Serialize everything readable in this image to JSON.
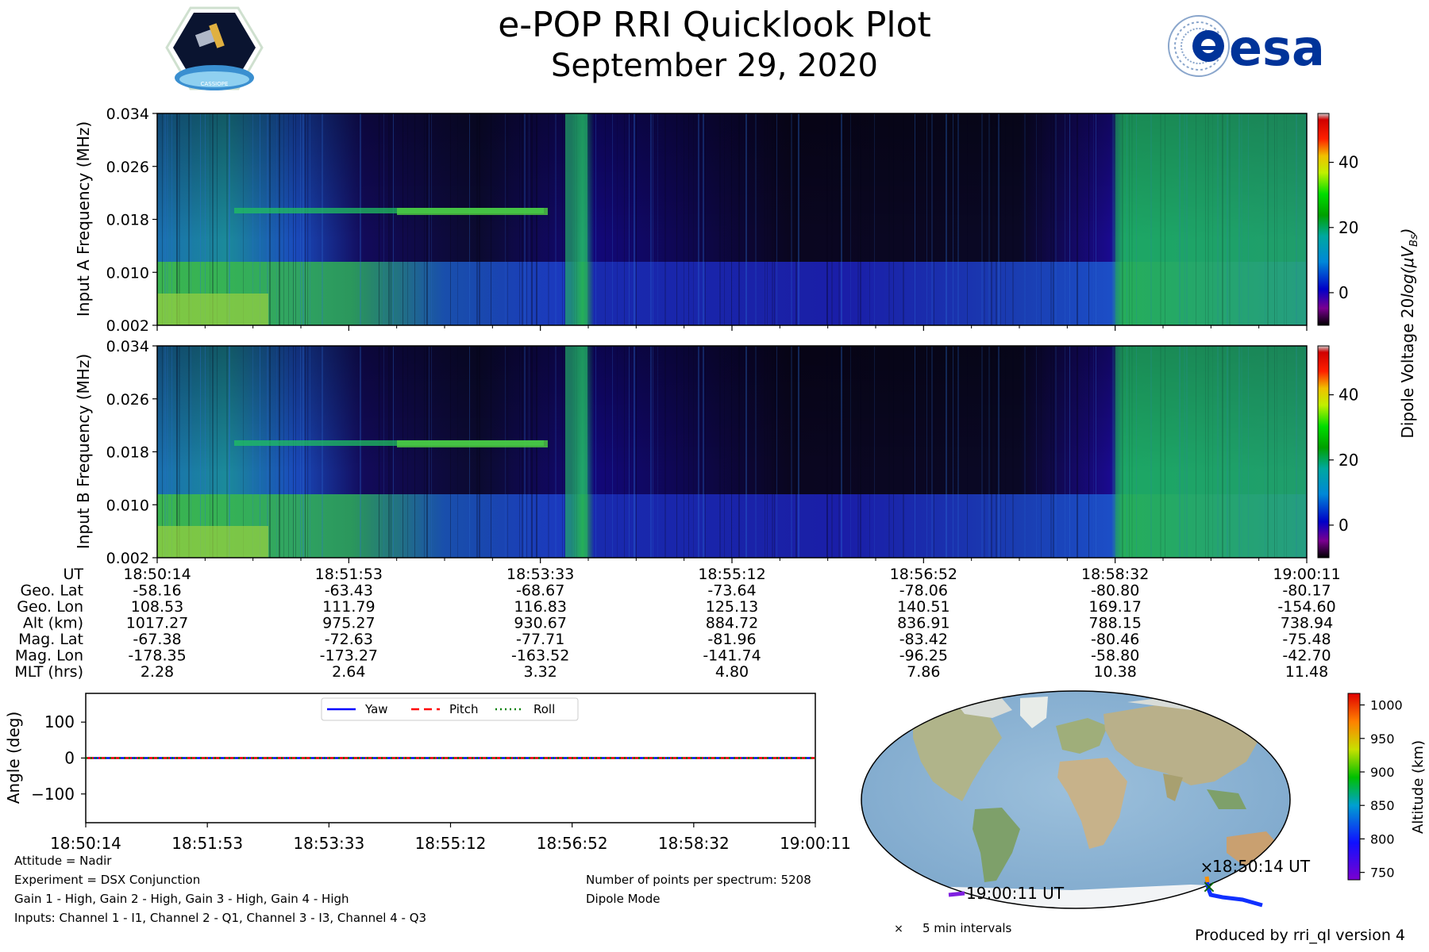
{
  "header": {
    "title": "e-POP RRI Quicklook Plot",
    "date": "September 29, 2020",
    "mission_logo_text": "CASSIOPE",
    "agency_logo_text": "esa"
  },
  "colorbar": {
    "label_prefix": "Dipole Voltage 20",
    "label_log": "log",
    "label_unit": "(μV",
    "label_sub": "Bs",
    "label_close": ")",
    "ticks": [
      "40",
      "20",
      "0"
    ]
  },
  "chart_data": [
    {
      "type": "heatmap",
      "title": "",
      "ylabel": "Input A Frequency (MHz)",
      "y_ticks": [
        "0.034",
        "0.026",
        "0.018",
        "0.010",
        "0.002"
      ],
      "ylim": [
        0.002,
        0.034
      ],
      "z_range": [
        -10,
        55
      ],
      "colormap": "nipy_spectral"
    },
    {
      "type": "heatmap",
      "title": "",
      "ylabel": "Input B Frequency (MHz)",
      "y_ticks": [
        "0.034",
        "0.026",
        "0.018",
        "0.010",
        "0.002"
      ],
      "ylim": [
        0.002,
        0.034
      ],
      "z_range": [
        -10,
        55
      ],
      "colormap": "nipy_spectral"
    },
    {
      "type": "line",
      "ylabel": "Angle (deg)",
      "ylim": [
        -180,
        180
      ],
      "y_ticks": [
        "100",
        "0",
        "−100"
      ],
      "x_ticks": [
        "18:50:14",
        "18:51:53",
        "18:53:33",
        "18:55:12",
        "18:56:52",
        "18:58:32",
        "19:00:11"
      ],
      "series": [
        {
          "name": "Yaw",
          "color": "#0000ff",
          "style": "solid",
          "values": [
            0,
            0,
            0,
            0,
            0,
            0,
            0
          ]
        },
        {
          "name": "Pitch",
          "color": "#ff0000",
          "style": "dashed",
          "values": [
            0,
            0,
            0,
            0,
            0,
            0,
            0
          ]
        },
        {
          "name": "Roll",
          "color": "#008000",
          "style": "dotted",
          "values": [
            0,
            0,
            0,
            0,
            0,
            0,
            0
          ]
        }
      ],
      "legend": "top-center"
    }
  ],
  "ephemeris": {
    "row_labels": [
      "UT",
      "Geo. Lat",
      "Geo. Lon",
      "Alt (km)",
      "Mag. Lat",
      "Mag. Lon",
      "MLT (hrs)"
    ],
    "columns": [
      [
        "18:50:14",
        "-58.16",
        "108.53",
        "1017.27",
        "-67.38",
        "-178.35",
        "2.28"
      ],
      [
        "18:51:53",
        "-63.43",
        "111.79",
        "975.27",
        "-72.63",
        "-173.27",
        "2.64"
      ],
      [
        "18:53:33",
        "-68.67",
        "116.83",
        "930.67",
        "-77.71",
        "-163.52",
        "3.32"
      ],
      [
        "18:55:12",
        "-73.64",
        "125.13",
        "884.72",
        "-81.96",
        "-141.74",
        "4.80"
      ],
      [
        "18:56:52",
        "-78.06",
        "140.51",
        "836.91",
        "-83.42",
        "-96.25",
        "7.86"
      ],
      [
        "18:58:32",
        "-80.80",
        "169.17",
        "788.15",
        "-80.46",
        "-58.80",
        "10.38"
      ],
      [
        "19:00:11",
        "-80.17",
        "-154.60",
        "738.94",
        "-75.48",
        "-42.70",
        "11.48"
      ]
    ]
  },
  "info": {
    "left": [
      "Attitude = Nadir",
      "Experiment = DSX Conjunction",
      "Gain 1 - High, Gain 2 - High, Gain 3 - High, Gain 4 - High",
      "Inputs: Channel 1 - I1, Channel 2 - Q1, Channel 3 - I3, Channel 4 - Q3"
    ],
    "right": [
      "Number of points per spectrum: 5208",
      "Dipole Mode"
    ]
  },
  "map": {
    "start_label": "18:50:14 UT",
    "end_label": "19:00:11 UT",
    "interval_marker": "×",
    "interval_legend": "5 min intervals",
    "altitude_label": "Altitude (km)",
    "altitude_ticks": [
      "1000",
      "950",
      "900",
      "850",
      "800",
      "750"
    ],
    "altitude_range": [
      738.94,
      1017.27
    ]
  },
  "footer": {
    "produced_by": "Produced by rri_ql version 4"
  }
}
